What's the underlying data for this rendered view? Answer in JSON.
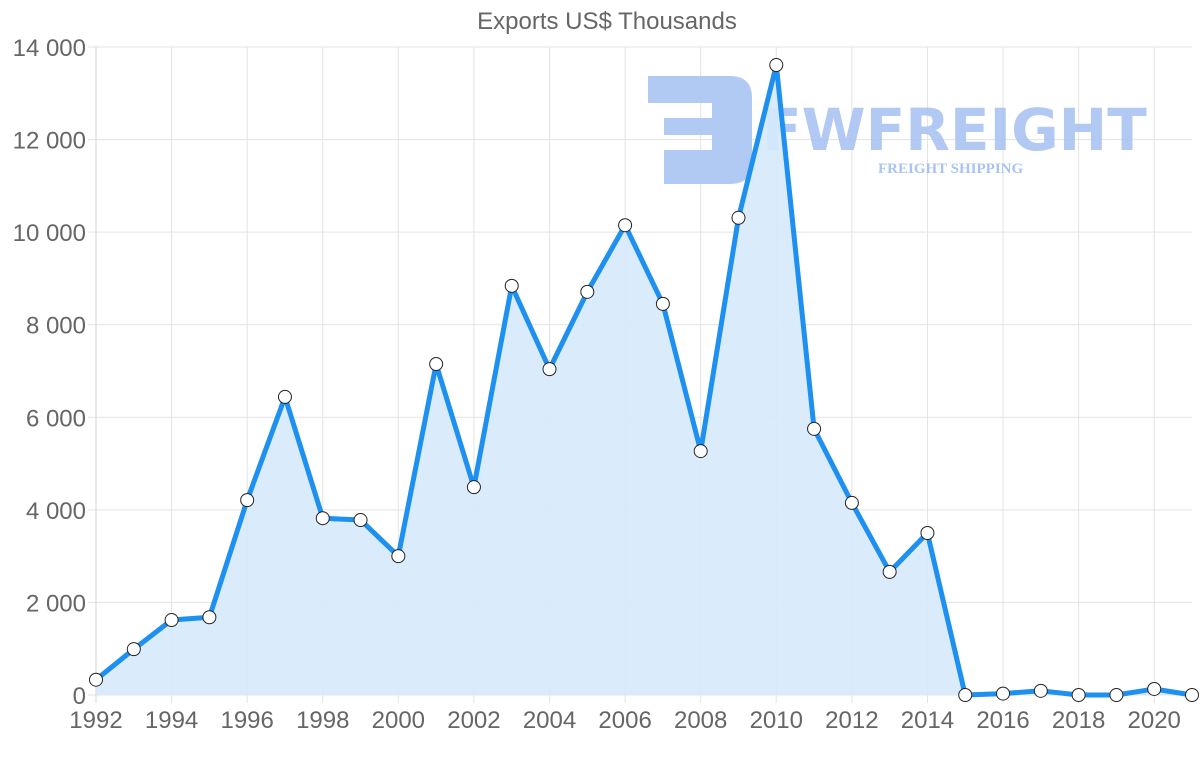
{
  "chart_data": {
    "type": "area",
    "title": "Exports US$ Thousands",
    "xlabel": "",
    "ylabel": "",
    "ylim": [
      0,
      14000
    ],
    "yticks": [
      0,
      2000,
      4000,
      6000,
      8000,
      10000,
      12000,
      14000
    ],
    "ytick_labels": [
      "0",
      "2 000",
      "4 000",
      "6 000",
      "8 000",
      "10 000",
      "12 000",
      "14 000"
    ],
    "xtick_labels": [
      "1992",
      "1994",
      "1996",
      "1998",
      "2000",
      "2002",
      "2004",
      "2006",
      "2008",
      "2010",
      "2012",
      "2014",
      "2016",
      "2018",
      "2020"
    ],
    "grid": true,
    "legend": null,
    "x": [
      1992,
      1993,
      1994,
      1995,
      1996,
      1997,
      1998,
      1999,
      2000,
      2001,
      2002,
      2003,
      2004,
      2005,
      2006,
      2007,
      2008,
      2009,
      2010,
      2011,
      2012,
      2013,
      2014,
      2015,
      2016,
      2017,
      2018,
      2019,
      2020,
      2021
    ],
    "series": [
      {
        "name": "Exports",
        "values": [
          330,
          990,
          1620,
          1680,
          4210,
          6440,
          3820,
          3780,
          3000,
          7150,
          4490,
          8840,
          7040,
          8710,
          10150,
          8450,
          5270,
          10310,
          13610,
          5750,
          4150,
          2660,
          3500,
          0,
          30,
          90,
          0,
          0,
          130,
          0
        ],
        "color": "#1e90f0",
        "fill": "#d6eafc"
      }
    ]
  },
  "watermark": {
    "brand": "FWFREIGHT",
    "tagline": "FREIGHT SHIPPING",
    "color": "#a9c4f2"
  }
}
